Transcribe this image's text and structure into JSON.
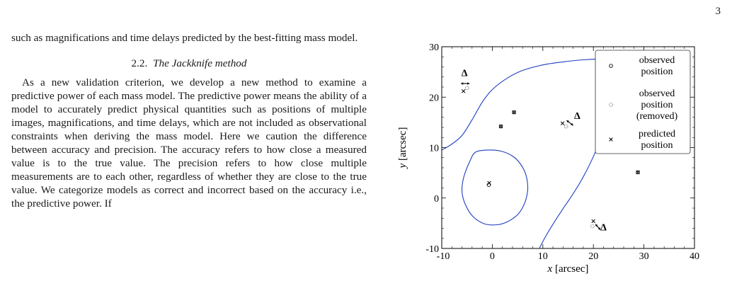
{
  "page_number": "3",
  "text": {
    "intro": "such as magnifications and time delays predicted by the best-fitting mass model.",
    "section_number": "2.2.",
    "section_title": "The Jackknife method",
    "paragraph": "As a new validation criterion, we develop a new method to examine a predictive power of each mass model. The predictive power means the ability of a model to accurately predict physical quantities such as positions of multiple images, magnifications, and time delays, which are not included as observational constraints when deriving the mass model. Here we caution the difference between accuracy and precision. The accuracy refers to how close a measured value is to the true value. The precision refers to how close multiple measurements are to each other, regardless of whether they are close to the true value. We categorize models as correct and incorrect based on the accuracy i.e., the predictive power. If"
  },
  "chart_data": {
    "type": "scatter",
    "xlabel_var": "x",
    "xlabel_unit": "[arcsec]",
    "ylabel_var": "y",
    "ylabel_unit": "[arcsec]",
    "xlim": [
      -10,
      40
    ],
    "ylim": [
      -10,
      30
    ],
    "xticks": [
      "-10",
      "0",
      "10",
      "20",
      "30",
      "40"
    ],
    "yticks": [
      "-10",
      "0",
      "10",
      "20",
      "30"
    ],
    "legend_position": "top-right",
    "legend": [
      {
        "marker": "circle",
        "lines": [
          "observed",
          "position"
        ]
      },
      {
        "marker": "dotted-circle",
        "lines": [
          "observed",
          "position",
          "(removed)"
        ]
      },
      {
        "marker": "cross",
        "lines": [
          "predicted",
          "position"
        ]
      }
    ],
    "observed": [
      {
        "x": -0.7,
        "y": 2.6
      },
      {
        "x": 1.7,
        "y": 14.2
      },
      {
        "x": 4.3,
        "y": 17.0
      },
      {
        "x": 28.8,
        "y": 5.1
      }
    ],
    "removed": [
      {
        "x": -5.0,
        "y": 21.8
      },
      {
        "x": 14.6,
        "y": 14.2
      },
      {
        "x": 19.8,
        "y": -5.6
      }
    ],
    "predicted": [
      {
        "x": -0.6,
        "y": 3.0
      },
      {
        "x": 1.7,
        "y": 14.2
      },
      {
        "x": 4.3,
        "y": 17.0
      },
      {
        "x": 28.8,
        "y": 5.1
      },
      {
        "x": -5.7,
        "y": 21.2
      },
      {
        "x": 13.9,
        "y": 14.8
      },
      {
        "x": 20.0,
        "y": -4.6
      }
    ],
    "annotations": [
      {
        "text": "Δ",
        "x": -5.5,
        "y": 24.2
      },
      {
        "text": "Δ",
        "x": 16.8,
        "y": 15.7
      },
      {
        "text": "Δ",
        "x": 22.0,
        "y": -6.4
      }
    ],
    "arrows": [
      {
        "x1": -6.2,
        "y1": 22.7,
        "x2": -4.5,
        "y2": 22.7
      },
      {
        "x1": 14.7,
        "y1": 15.4,
        "x2": 16.0,
        "y2": 14.4
      },
      {
        "x1": 20.4,
        "y1": -5.2,
        "x2": 21.4,
        "y2": -6.3
      }
    ],
    "curves": [
      {
        "name": "circle-curve",
        "closed": true,
        "points": [
          [
            -3.3,
            9.1
          ],
          [
            -1.1,
            9.5
          ],
          [
            1.7,
            9.3
          ],
          [
            4.3,
            8.1
          ],
          [
            6.0,
            6.1
          ],
          [
            6.8,
            4.0
          ],
          [
            7.0,
            1.6
          ],
          [
            6.4,
            -1.0
          ],
          [
            5.1,
            -3.2
          ],
          [
            3.0,
            -4.7
          ],
          [
            0.9,
            -5.3
          ],
          [
            -1.6,
            -5.1
          ],
          [
            -3.9,
            -3.6
          ],
          [
            -5.4,
            -1.1
          ],
          [
            -6.0,
            1.4
          ],
          [
            -5.6,
            4.3
          ],
          [
            -4.3,
            7.6
          ]
        ]
      },
      {
        "name": "outer-curve",
        "closed": false,
        "points": [
          [
            -10,
            9.5
          ],
          [
            -8.0,
            10.7
          ],
          [
            -6.0,
            12.4
          ],
          [
            -4.0,
            15.5
          ],
          [
            -2.0,
            19.0
          ],
          [
            0,
            21.5
          ],
          [
            3.0,
            23.8
          ],
          [
            6.0,
            25.3
          ],
          [
            10.0,
            26.4
          ],
          [
            14.0,
            27.0
          ],
          [
            18.0,
            27.4
          ],
          [
            22.0,
            27.6
          ],
          [
            24.0,
            27.6
          ],
          [
            25.6,
            26.0
          ],
          [
            24.3,
            20.3
          ],
          [
            23.2,
            16.8
          ],
          [
            22.6,
            15.4
          ],
          [
            21.8,
            13.1
          ],
          [
            20.3,
            8.9
          ],
          [
            18.0,
            4.2
          ],
          [
            15.9,
            0.7
          ],
          [
            14.0,
            -2.1
          ],
          [
            12.0,
            -5.2
          ],
          [
            10.5,
            -7.7
          ],
          [
            9.3,
            -10
          ]
        ]
      }
    ]
  }
}
